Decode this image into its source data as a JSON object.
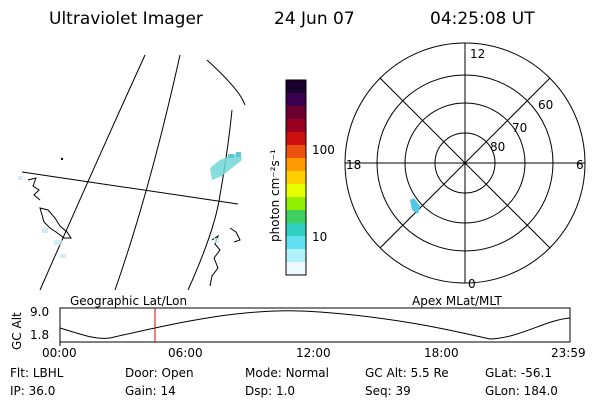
{
  "header": {
    "title": "Ultraviolet Imager",
    "date": "24 Jun 07",
    "time": "04:25:08 UT"
  },
  "colorbar": {
    "unit_label": "photon cm⁻²s⁻¹",
    "ticks": [
      "100",
      "10"
    ],
    "scale": "log",
    "colors_top_to_bottom": [
      "#1a0030",
      "#3a0050",
      "#6a0030",
      "#9a0020",
      "#cc1010",
      "#ee5010",
      "#ff9a00",
      "#ffd000",
      "#e8ff00",
      "#90f000",
      "#40d060",
      "#30d0c0",
      "#60e0f0",
      "#b0f0f8",
      "#f0f8ff"
    ]
  },
  "polar_plot": {
    "mlt_labels": {
      "top": "12",
      "left": "18",
      "right": "6",
      "bottom": "0"
    },
    "lat_labels": [
      "60",
      "70",
      "80"
    ]
  },
  "altitude_plot": {
    "left_label": "Geographic Lat/Lon",
    "right_label": "Apex MLat/MLT",
    "y_axis_label": "GC Alt",
    "y_ticks": [
      "9.0",
      "1.8"
    ],
    "x_ticks": [
      "00:00",
      "06:00",
      "12:00",
      "18:00",
      "23:59"
    ],
    "marker_time": "04:25:08",
    "marker_color": "#e00000"
  },
  "footer": {
    "rows": [
      [
        {
          "label": "Flt:",
          "value": "LBHL"
        },
        {
          "label": "Door:",
          "value": "Open"
        },
        {
          "label": "Mode:",
          "value": "Normal"
        },
        {
          "label": "GC Alt:",
          "value": "5.5 Re"
        },
        {
          "label": "GLat:",
          "value": "-56.1"
        }
      ],
      [
        {
          "label": "IP:",
          "value": "36.0"
        },
        {
          "label": "Gain:",
          "value": "14"
        },
        {
          "label": "Dsp:",
          "value": "1.0"
        },
        {
          "label": "Seq:",
          "value": "39"
        },
        {
          "label": "GLon:",
          "value": "184.0"
        }
      ]
    ]
  }
}
